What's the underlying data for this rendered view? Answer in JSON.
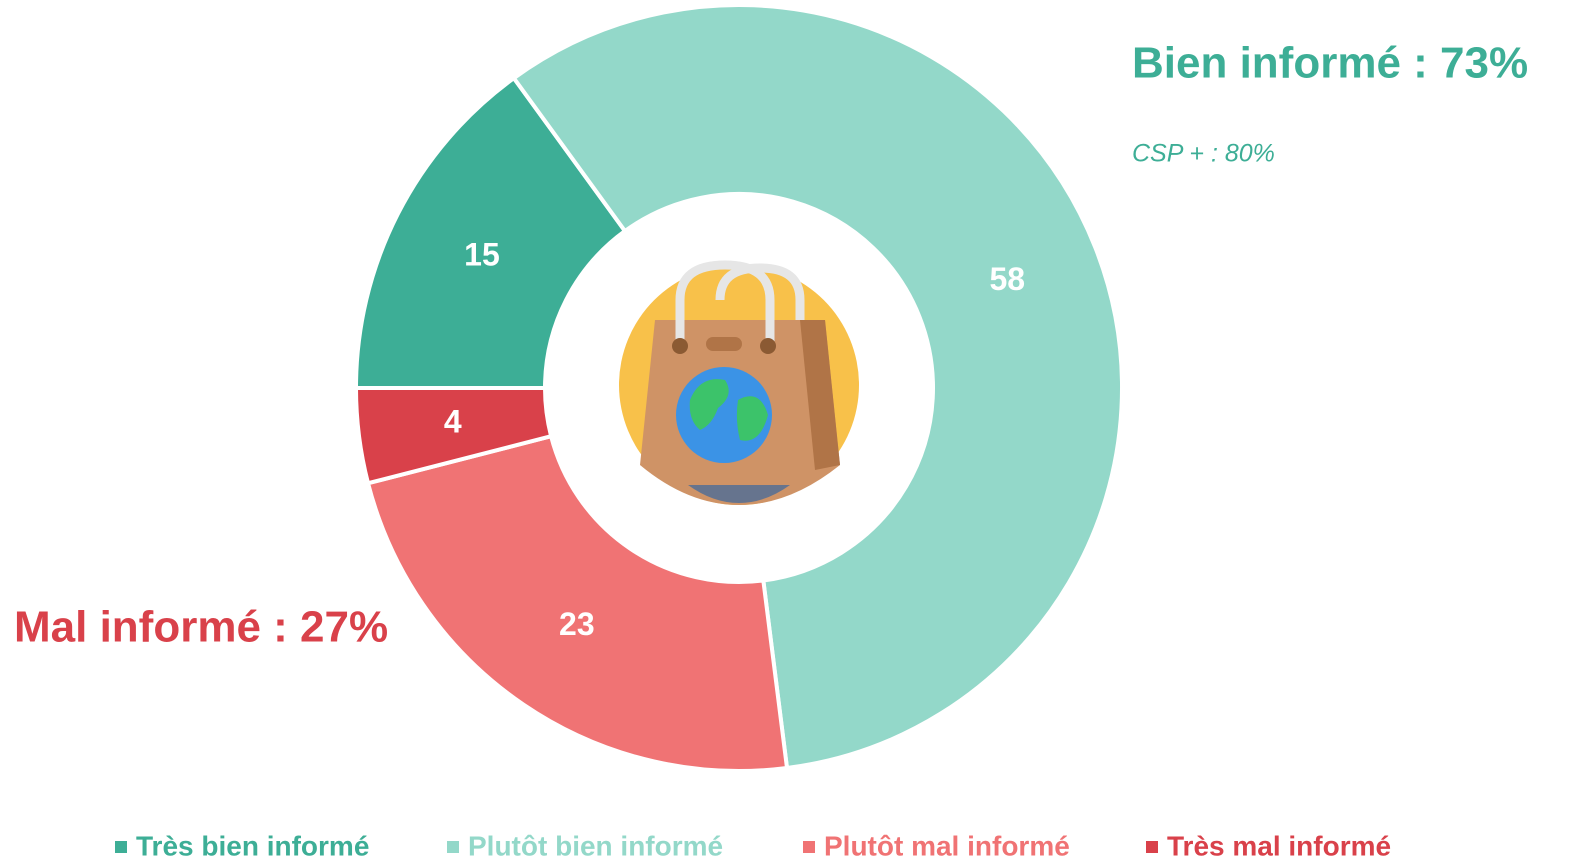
{
  "chart_data": {
    "type": "donut",
    "categories": [
      "Très bien informé",
      "Plutôt bien informé",
      "Plutôt mal informé",
      "Très mal informé"
    ],
    "values": [
      15,
      58,
      23,
      4
    ],
    "colors": [
      "#3dae96",
      "#93d8c9",
      "#f07374",
      "#d9414a"
    ],
    "annotations": [
      {
        "text": "Bien informé : 73%",
        "color": "#3dae96"
      },
      {
        "text": "CSP + : 80%",
        "color": "#3dae96"
      },
      {
        "text": "Mal informé : 27%",
        "color": "#d9414a"
      }
    ]
  }
}
